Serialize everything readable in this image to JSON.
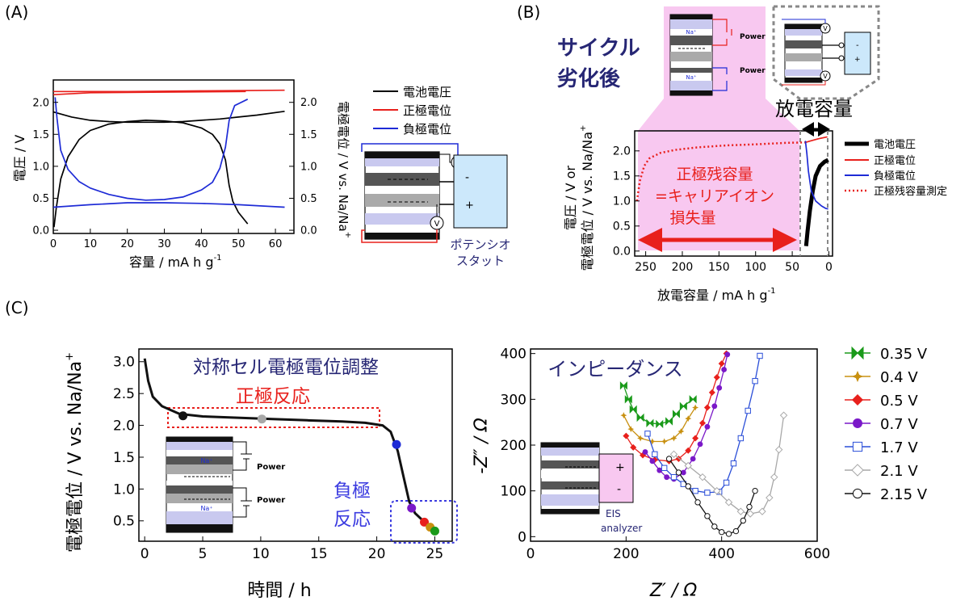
{
  "panels": {
    "a": {
      "label": "(A)"
    },
    "b": {
      "label": "(B)"
    },
    "c": {
      "label": "(C)"
    }
  },
  "colors": {
    "black": "#000000",
    "red": "#e8201c",
    "blue": "#1e2bd6",
    "pink": "#f8c8f0",
    "navy": "#262674",
    "lightblue": "#cce8fb",
    "cellblue": "#c9c9ef",
    "green": "#1a9a1a",
    "gold": "#c89010",
    "purple": "#7a18c8",
    "midblue": "#2a4ed8",
    "grey": "#a8a8a8",
    "dark": "#111111"
  },
  "schematic": {
    "na": "Na⁺",
    "power": "Power",
    "potentiostat_line1": "ポテンシオ",
    "potentiostat_line2": "スタット",
    "eis_line1": "EIS",
    "eis_line2": "analyzer",
    "v": "V",
    "plus": "+",
    "minus": "-"
  },
  "chart_data": [
    {
      "id": "A",
      "type": "line",
      "xlabel": "容量 / mA h g",
      "xlabel_sup": "-1",
      "ylabel": "電圧 / V",
      "y2label": "電極電位 / V vs. Na/Na",
      "y2label_sup": "+",
      "xlim": [
        0,
        65
      ],
      "xticks": [
        0,
        10,
        20,
        30,
        40,
        50,
        60
      ],
      "ylim": [
        -0.05,
        2.35
      ],
      "yticks": [
        0.0,
        0.5,
        1.0,
        1.5,
        2.0
      ],
      "ytick_labels": [
        "0.0",
        "0.5",
        "1.0",
        "1.5",
        "2.0"
      ],
      "y2ticks": [
        0.0,
        0.5,
        1.0,
        1.5,
        2.0
      ],
      "y2tick_labels": [
        "0.0",
        "0.5",
        "1.0",
        "1.5",
        "2.0"
      ],
      "legend": [
        "電池電圧",
        "正極電位",
        "負極電位"
      ],
      "series": [
        {
          "name": "電池電圧",
          "color": "black",
          "points": [
            [
              0.2,
              0.05
            ],
            [
              0.8,
              0.35
            ],
            [
              2,
              0.8
            ],
            [
              4,
              1.15
            ],
            [
              7,
              1.42
            ],
            [
              10,
              1.56
            ],
            [
              15,
              1.66
            ],
            [
              20,
              1.7
            ],
            [
              25,
              1.72
            ],
            [
              30,
              1.71
            ],
            [
              35,
              1.68
            ],
            [
              40,
              1.6
            ],
            [
              43,
              1.5
            ],
            [
              45,
              1.35
            ],
            [
              46.5,
              1.1
            ],
            [
              47.5,
              0.7
            ],
            [
              48.5,
              0.45
            ],
            [
              50,
              0.28
            ],
            [
              52.5,
              0.1
            ]
          ]
        },
        {
          "name": "電池電圧",
          "color": "black",
          "points": [
            [
              0,
              1.85
            ],
            [
              5,
              1.77
            ],
            [
              10,
              1.72
            ],
            [
              15,
              1.7
            ],
            [
              20,
              1.69
            ],
            [
              25,
              1.69
            ],
            [
              30,
              1.69
            ],
            [
              35,
              1.7
            ],
            [
              40,
              1.72
            ],
            [
              45,
              1.74
            ],
            [
              50,
              1.77
            ],
            [
              55,
              1.8
            ],
            [
              62.5,
              1.86
            ]
          ]
        },
        {
          "name": "正極電位",
          "color": "red",
          "points": [
            [
              0,
              2.12
            ],
            [
              10,
              2.15
            ],
            [
              30,
              2.16
            ],
            [
              52,
              2.17
            ]
          ]
        },
        {
          "name": "正極電位",
          "color": "red",
          "points": [
            [
              0,
              2.17
            ],
            [
              20,
              2.17
            ],
            [
              40,
              2.18
            ],
            [
              62.5,
              2.19
            ]
          ]
        },
        {
          "name": "負極電位",
          "color": "blue",
          "points": [
            [
              0.5,
              2.08
            ],
            [
              1,
              1.75
            ],
            [
              2,
              1.25
            ],
            [
              4,
              0.95
            ],
            [
              7,
              0.76
            ],
            [
              10,
              0.66
            ],
            [
              15,
              0.56
            ],
            [
              20,
              0.5
            ],
            [
              25,
              0.47
            ],
            [
              30,
              0.48
            ],
            [
              35,
              0.52
            ],
            [
              40,
              0.63
            ],
            [
              43,
              0.75
            ],
            [
              45,
              0.97
            ],
            [
              46.5,
              1.3
            ],
            [
              47.5,
              1.72
            ],
            [
              49,
              1.95
            ],
            [
              52.5,
              2.05
            ]
          ]
        },
        {
          "name": "負極電位",
          "color": "blue",
          "points": [
            [
              0,
              0.36
            ],
            [
              10,
              0.4
            ],
            [
              20,
              0.43
            ],
            [
              30,
              0.43
            ],
            [
              40,
              0.42
            ],
            [
              50,
              0.4
            ],
            [
              62.5,
              0.36
            ]
          ]
        }
      ]
    },
    {
      "id": "B",
      "type": "line",
      "title_line1": "サイクル",
      "title_line2": "劣化後",
      "xlabel": "放電容量 / mA h g",
      "xlabel_sup": "-1",
      "ylabel_line1": "電圧 / V or",
      "ylabel_line2": "電極電位 / V vs. Na/Na",
      "ylabel_sup": "+",
      "xlim": [
        265,
        -5
      ],
      "xticks": [
        250,
        200,
        150,
        100,
        50,
        0
      ],
      "ylim": [
        -0.1,
        2.4
      ],
      "yticks": [
        0.0,
        0.5,
        1.0,
        1.5,
        2.0
      ],
      "ytick_labels": [
        "0.0",
        "0.5",
        "1.0",
        "1.5",
        "2.0"
      ],
      "annotation_line1": "正極残容量",
      "annotation_line2": "=キャリアイオン",
      "annotation_line3": "損失量",
      "capacity_label": "放電容量",
      "legend": [
        "電池電圧",
        "正極電位",
        "負極電位",
        "正極残容量測定"
      ],
      "series": [
        {
          "name": "正極残容量測定",
          "color": "red",
          "dotted": true,
          "points": [
            [
              262,
              1.0
            ],
            [
              258,
              1.4
            ],
            [
              252,
              1.7
            ],
            [
              245,
              1.85
            ],
            [
              230,
              1.96
            ],
            [
              210,
              2.02
            ],
            [
              180,
              2.07
            ],
            [
              140,
              2.11
            ],
            [
              100,
              2.13
            ],
            [
              60,
              2.16
            ],
            [
              32,
              2.17
            ]
          ]
        },
        {
          "name": "正極電位",
          "color": "red",
          "points": [
            [
              32,
              2.17
            ],
            [
              25,
              2.2
            ],
            [
              15,
              2.24
            ],
            [
              2,
              2.28
            ]
          ]
        },
        {
          "name": "電池電圧",
          "color": "black",
          "thick": true,
          "points": [
            [
              31,
              0.1
            ],
            [
              29,
              0.4
            ],
            [
              26,
              0.8
            ],
            [
              22,
              1.2
            ],
            [
              18,
              1.5
            ],
            [
              12,
              1.7
            ],
            [
              6,
              1.78
            ],
            [
              1,
              1.82
            ]
          ]
        },
        {
          "name": "負極電位",
          "color": "blue",
          "points": [
            [
              32,
              2.2
            ],
            [
              30,
              1.95
            ],
            [
              28,
              1.6
            ],
            [
              24,
              1.2
            ],
            [
              18,
              1.0
            ],
            [
              10,
              0.9
            ],
            [
              4,
              0.85
            ],
            [
              1,
              0.84
            ]
          ]
        }
      ]
    },
    {
      "id": "C1",
      "type": "line",
      "title": "対称セル電極電位調整",
      "cathode_reaction": "正極反応",
      "anode_line1": "負極",
      "anode_line2": "反応",
      "xlabel": "時間 / h",
      "ylabel": "電極電位 / V vs. Na/Na",
      "ylabel_sup": "+",
      "xlim": [
        -0.5,
        26.5
      ],
      "xticks": [
        0,
        5,
        10,
        15,
        20,
        25
      ],
      "ylim": [
        0.18,
        3.2
      ],
      "yticks": [
        0.5,
        1.0,
        1.5,
        2.0,
        2.5,
        3.0
      ],
      "ytick_labels": [
        "0.5",
        "1.0",
        "1.5",
        "2.0",
        "2.5",
        "3.0"
      ],
      "series": [
        {
          "name": "",
          "color": "dark",
          "points": [
            [
              0,
              3.05
            ],
            [
              0.3,
              2.7
            ],
            [
              0.7,
              2.45
            ],
            [
              1.5,
              2.3
            ],
            [
              3,
              2.18
            ],
            [
              5,
              2.14
            ],
            [
              8,
              2.12
            ],
            [
              11,
              2.1
            ],
            [
              14,
              2.08
            ],
            [
              17,
              2.06
            ],
            [
              19,
              2.04
            ],
            [
              20.5,
              2.0
            ],
            [
              21.2,
              1.9
            ],
            [
              21.8,
              1.6
            ],
            [
              22.3,
              1.2
            ],
            [
              22.8,
              0.8
            ],
            [
              23.3,
              0.62
            ],
            [
              24,
              0.5
            ],
            [
              24.5,
              0.42
            ],
            [
              25,
              0.35
            ],
            [
              25.3,
              0.3
            ]
          ]
        }
      ],
      "markers": [
        {
          "x": 3.3,
          "y": 2.15,
          "color": "dark"
        },
        {
          "x": 10.1,
          "y": 2.1,
          "color": "grey"
        },
        {
          "x": 21.7,
          "y": 1.7,
          "color": "blue"
        },
        {
          "x": 23.0,
          "y": 0.7,
          "color": "purple"
        },
        {
          "x": 24.1,
          "y": 0.48,
          "color": "red"
        },
        {
          "x": 24.6,
          "y": 0.4,
          "color": "gold"
        },
        {
          "x": 25.0,
          "y": 0.34,
          "color": "green"
        }
      ]
    },
    {
      "id": "C2",
      "type": "scatter",
      "title": "インピーダンス",
      "xlabel": "Z′ / Ω",
      "ylabel": "-Z″ / Ω",
      "xlim": [
        0,
        600
      ],
      "xticks": [
        0,
        200,
        400,
        600
      ],
      "ylim": [
        -10,
        410
      ],
      "yticks": [
        0,
        100,
        200,
        300,
        400
      ],
      "legend": [
        "0.35 V",
        "0.4 V",
        "0.5 V",
        "0.7 V",
        "1.7 V",
        "2.1 V",
        "2.15 V"
      ],
      "series": [
        {
          "name": "0.35 V",
          "color": "green",
          "marker": "bowtie",
          "points": [
            [
              195,
              330
            ],
            [
              205,
              300
            ],
            [
              215,
              278
            ],
            [
              230,
              260
            ],
            [
              250,
              248
            ],
            [
              270,
              246
            ],
            [
              290,
              252
            ],
            [
              305,
              268
            ],
            [
              320,
              285
            ],
            [
              340,
              300
            ]
          ]
        },
        {
          "name": "0.4 V",
          "color": "gold",
          "marker": "star",
          "points": [
            [
              195,
              265
            ],
            [
              210,
              235
            ],
            [
              230,
              215
            ],
            [
              255,
              208
            ],
            [
              280,
              208
            ],
            [
              300,
              215
            ],
            [
              315,
              230
            ],
            [
              330,
              258
            ],
            [
              345,
              282
            ]
          ]
        },
        {
          "name": "0.5 V",
          "color": "red",
          "marker": "diamond",
          "points": [
            [
              200,
              220
            ],
            [
              215,
              195
            ],
            [
              235,
              178
            ],
            [
              260,
              168
            ],
            [
              290,
              165
            ],
            [
              310,
              170
            ],
            [
              330,
              188
            ],
            [
              345,
              215
            ],
            [
              360,
              248
            ],
            [
              370,
              282
            ],
            [
              380,
              315
            ],
            [
              390,
              348
            ],
            [
              400,
              378
            ],
            [
              410,
              400
            ]
          ]
        },
        {
          "name": "0.7 V",
          "color": "purple",
          "marker": "circle",
          "points": [
            [
              240,
              185
            ],
            [
              255,
              165
            ],
            [
              270,
              145
            ],
            [
              285,
              130
            ],
            [
              300,
              126
            ],
            [
              320,
              140
            ],
            [
              340,
              170
            ],
            [
              355,
              202
            ],
            [
              370,
              240
            ],
            [
              385,
              285
            ],
            [
              395,
              325
            ],
            [
              405,
              365
            ],
            [
              412,
              398
            ]
          ]
        },
        {
          "name": "1.7 V",
          "color": "midblue",
          "marker": "square",
          "points": [
            [
              245,
              225
            ],
            [
              260,
              180
            ],
            [
              280,
              150
            ],
            [
              300,
              130
            ],
            [
              320,
              115
            ],
            [
              345,
              100
            ],
            [
              370,
              96
            ],
            [
              395,
              98
            ],
            [
              410,
              118
            ],
            [
              425,
              160
            ],
            [
              440,
              215
            ],
            [
              455,
              275
            ],
            [
              470,
              340
            ],
            [
              480,
              395
            ]
          ]
        },
        {
          "name": "2.1 V",
          "color": "grey",
          "marker": "diamond-open",
          "points": [
            [
              300,
              180
            ],
            [
              330,
              155
            ],
            [
              360,
              130
            ],
            [
              390,
              100
            ],
            [
              415,
              75
            ],
            [
              440,
              55
            ],
            [
              460,
              50
            ],
            [
              485,
              55
            ],
            [
              500,
              85
            ],
            [
              510,
              130
            ],
            [
              520,
              190
            ],
            [
              530,
              265
            ]
          ]
        },
        {
          "name": "2.15 V",
          "color": "dark",
          "marker": "circle-open",
          "points": [
            [
              290,
              170
            ],
            [
              310,
              140
            ],
            [
              330,
              110
            ],
            [
              350,
              75
            ],
            [
              370,
              45
            ],
            [
              385,
              22
            ],
            [
              400,
              10
            ],
            [
              415,
              6
            ],
            [
              430,
              12
            ],
            [
              445,
              35
            ],
            [
              458,
              65
            ],
            [
              470,
              100
            ]
          ]
        }
      ]
    }
  ]
}
